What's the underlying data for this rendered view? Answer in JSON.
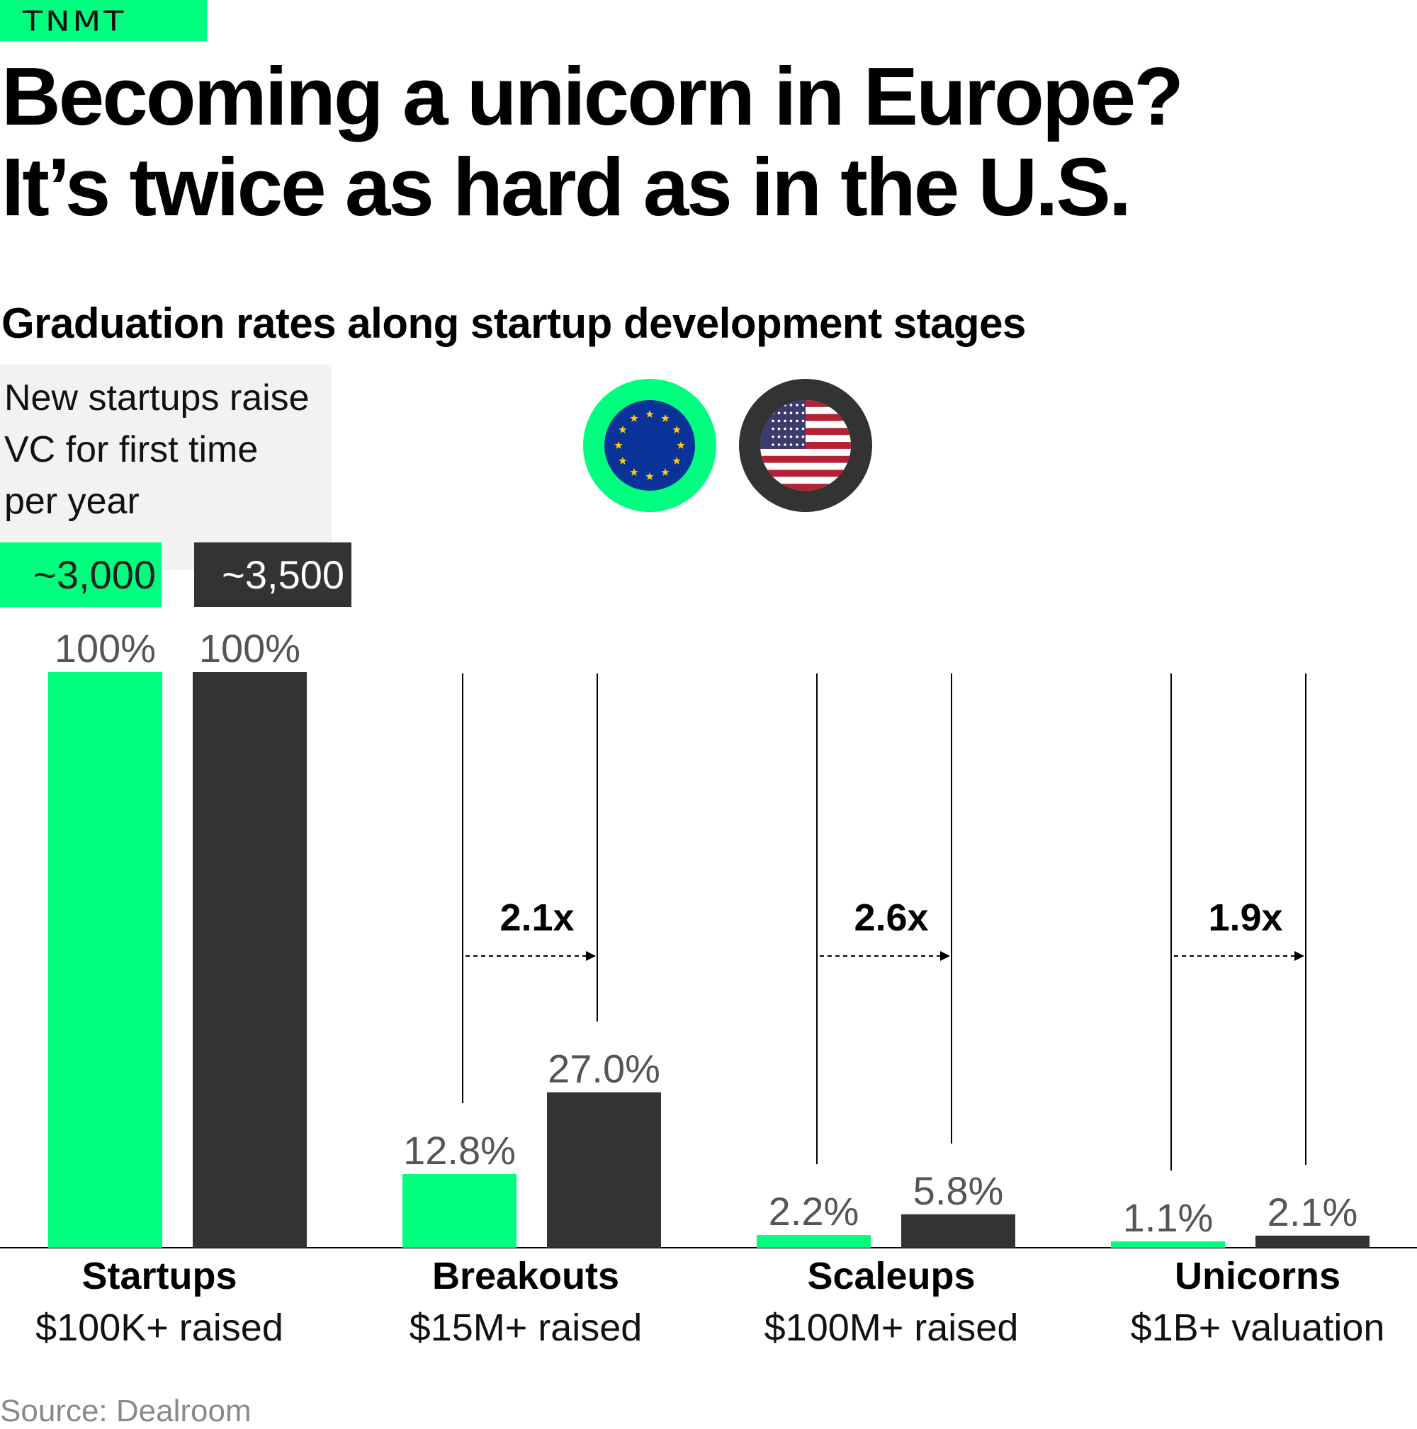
{
  "brand": {
    "label": "TNMT"
  },
  "headline": {
    "line1": "Becoming a unicorn in Europe?",
    "line2": "It’s twice as hard as in the U.S."
  },
  "subtitle": "Graduation rates along startup development stages",
  "note": {
    "text": "New startups raise VC for first time per year"
  },
  "counts": {
    "eu": "~3,000",
    "us": "~3,500"
  },
  "legend": {
    "eu_icon": "eu-flag-icon",
    "us_icon": "us-flag-icon"
  },
  "colors": {
    "eu": "#00ff7f",
    "us": "#333333",
    "label": "#555555",
    "axis": "#000000"
  },
  "source": "Source: Dealroom",
  "chart_data": {
    "type": "bar",
    "title": "Graduation rates along startup development stages",
    "categories": [
      "Startups",
      "Breakouts",
      "Scaleups",
      "Unicorns"
    ],
    "category_sublabels": [
      "$100K+ raised",
      "$15M+ raised",
      "$100M+ raised",
      "$1B+ valuation"
    ],
    "series": [
      {
        "values": [
          100,
          12.8,
          2.2,
          1.1
        ],
        "labels": [
          "100%",
          "12.8%",
          "2.2%",
          "1.1%"
        ],
        "color": "#00ff7f"
      },
      {
        "values": [
          100,
          27.0,
          5.8,
          2.1
        ],
        "labels": [
          "100%",
          "27.0%",
          "5.8%",
          "2.1%"
        ],
        "color": "#333333"
      }
    ],
    "ylim": [
      0,
      100
    ],
    "grid": false,
    "annotations": [
      {
        "category": "Breakouts",
        "text": "2.1x"
      },
      {
        "category": "Scaleups",
        "text": "2.6x"
      },
      {
        "category": "Unicorns",
        "text": "1.9x"
      }
    ]
  }
}
